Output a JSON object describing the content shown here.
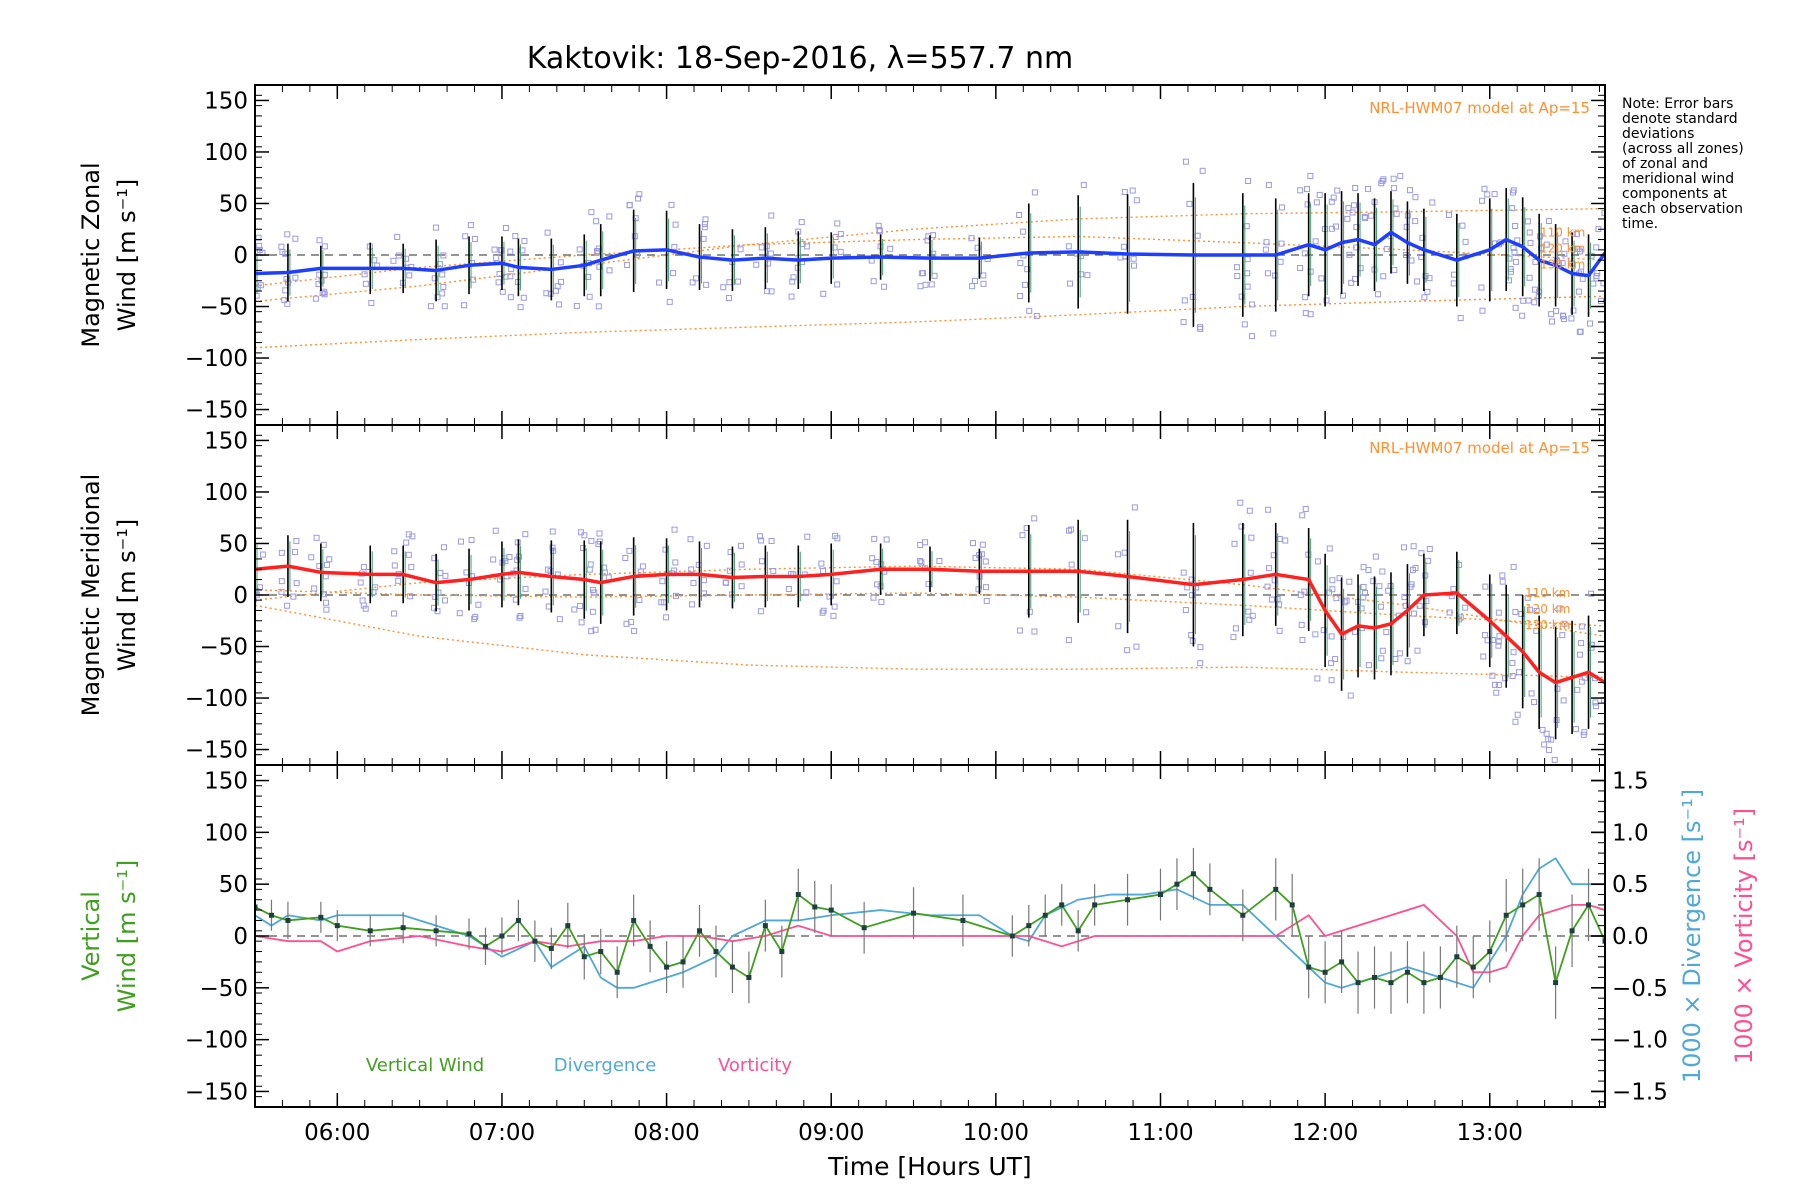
{
  "title": "Kaktovik: 18-Sep-2016, λ=557.7 nm",
  "note_lines": [
    "Note: Error bars",
    "denote standard",
    "deviations",
    "(across all zones)",
    "of zonal and",
    "meridional wind",
    "components at",
    "each observation",
    "time."
  ],
  "colors": {
    "zonal": "#1f3fff",
    "meridional": "#ff2020",
    "vertical": "#3f9f1f",
    "divergence": "#4fa8d8",
    "vorticity": "#ff4f8f",
    "model": "#ff8f30",
    "samples": "#9a9ae6",
    "errorbar": "#000000"
  },
  "chart_data": [
    {
      "type": "line",
      "ylabel_line1": "Magnetic Zonal",
      "ylabel_line2": "Wind [m s⁻¹]",
      "ylim": [
        -165,
        165
      ],
      "yticks": [
        150,
        100,
        50,
        0,
        -50,
        -100,
        -150
      ],
      "model_label": "NRL-HWM07 model at Ap=15",
      "model_heights": [
        "110 km",
        "120 km",
        "130 km"
      ],
      "model_curves": [
        {
          "x": [
            5.5,
            6.5,
            7.5,
            8.5,
            9.5,
            10.5,
            11.5,
            12.5,
            13.7
          ],
          "y": [
            -90,
            -82,
            -75,
            -70,
            -65,
            -58,
            -50,
            -45,
            -40
          ]
        },
        {
          "x": [
            5.5,
            6.5,
            7.5,
            8.5,
            9.5,
            10.5,
            11.5,
            12.5,
            13.7
          ],
          "y": [
            -30,
            -12,
            0,
            10,
            15,
            18,
            12,
            5,
            -5
          ]
        },
        {
          "x": [
            5.5,
            6.5,
            7.5,
            8.5,
            9.5,
            10.5,
            11.5,
            12.5,
            13.7
          ],
          "y": [
            -45,
            -30,
            -10,
            10,
            25,
            35,
            40,
            42,
            45
          ]
        }
      ],
      "series": [
        {
          "name": "Magnetic Zonal Wind",
          "x": [
            5.5,
            5.7,
            5.9,
            6.2,
            6.4,
            6.6,
            6.8,
            7.0,
            7.1,
            7.3,
            7.5,
            7.6,
            7.8,
            8.0,
            8.2,
            8.4,
            8.6,
            8.8,
            9.0,
            9.3,
            9.6,
            9.9,
            10.2,
            10.5,
            10.8,
            11.2,
            11.5,
            11.7,
            11.9,
            12.0,
            12.1,
            12.2,
            12.3,
            12.4,
            12.5,
            12.6,
            12.8,
            13.0,
            13.1,
            13.2,
            13.3,
            13.4,
            13.5,
            13.6,
            13.7
          ],
          "values": [
            -18,
            -17,
            -13,
            -13,
            -13,
            -15,
            -10,
            -8,
            -12,
            -14,
            -10,
            -5,
            4,
            5,
            -2,
            -5,
            -3,
            -5,
            -3,
            -2,
            -3,
            -3,
            2,
            3,
            1,
            0,
            0,
            0,
            10,
            5,
            12,
            15,
            10,
            22,
            12,
            5,
            -5,
            5,
            15,
            8,
            -5,
            -10,
            -18,
            -20,
            2
          ],
          "err": [
            25,
            28,
            22,
            25,
            24,
            30,
            28,
            26,
            28,
            30,
            30,
            35,
            40,
            38,
            32,
            30,
            30,
            28,
            25,
            22,
            22,
            20,
            48,
            55,
            58,
            70,
            60,
            55,
            50,
            55,
            50,
            45,
            45,
            40,
            40,
            40,
            45,
            50,
            50,
            48,
            45,
            40,
            40,
            40,
            35
          ]
        }
      ]
    },
    {
      "type": "line",
      "ylabel_line1": "Magnetic Meridional",
      "ylabel_line2": "Wind [m s⁻¹]",
      "ylim": [
        -165,
        165
      ],
      "yticks": [
        150,
        100,
        50,
        0,
        -50,
        -100,
        -150
      ],
      "model_label": "NRL-HWM07 model at Ap=15",
      "model_heights": [
        "110 km",
        "120 km",
        "130 km"
      ],
      "model_curves": [
        {
          "x": [
            5.5,
            6.5,
            7.5,
            8.5,
            9.5,
            10.5,
            11.5,
            12.5,
            13.7
          ],
          "y": [
            -10,
            -40,
            -58,
            -68,
            -72,
            -72,
            -70,
            -75,
            -80
          ]
        },
        {
          "x": [
            5.5,
            6.5,
            7.5,
            8.5,
            9.5,
            10.5,
            11.5,
            12.5,
            13.7
          ],
          "y": [
            5,
            0,
            -2,
            0,
            2,
            -2,
            -10,
            -20,
            -30
          ]
        },
        {
          "x": [
            5.5,
            6.5,
            7.5,
            8.5,
            9.5,
            10.5,
            11.5,
            12.5,
            13.7
          ],
          "y": [
            -5,
            12,
            20,
            25,
            28,
            25,
            10,
            -10,
            -40
          ]
        }
      ],
      "series": [
        {
          "name": "Magnetic Meridional Wind",
          "x": [
            5.5,
            5.7,
            5.9,
            6.2,
            6.4,
            6.6,
            6.8,
            7.0,
            7.1,
            7.3,
            7.5,
            7.6,
            7.8,
            8.0,
            8.2,
            8.4,
            8.6,
            8.8,
            9.0,
            9.3,
            9.6,
            9.9,
            10.2,
            10.5,
            10.8,
            11.2,
            11.5,
            11.7,
            11.9,
            12.0,
            12.1,
            12.2,
            12.3,
            12.4,
            12.5,
            12.6,
            12.8,
            13.0,
            13.1,
            13.2,
            13.3,
            13.4,
            13.5,
            13.6,
            13.7
          ],
          "values": [
            25,
            28,
            22,
            20,
            20,
            12,
            15,
            20,
            22,
            18,
            15,
            12,
            18,
            20,
            20,
            17,
            18,
            18,
            20,
            25,
            25,
            23,
            23,
            23,
            18,
            10,
            15,
            20,
            15,
            -15,
            -38,
            -30,
            -32,
            -28,
            -15,
            0,
            2,
            -25,
            -40,
            -55,
            -75,
            -85,
            -80,
            -75,
            -85
          ],
          "err": [
            30,
            30,
            28,
            28,
            28,
            28,
            30,
            32,
            32,
            35,
            38,
            40,
            38,
            35,
            32,
            30,
            30,
            30,
            30,
            25,
            22,
            22,
            45,
            50,
            55,
            60,
            55,
            50,
            50,
            55,
            55,
            50,
            50,
            50,
            45,
            40,
            40,
            45,
            50,
            55,
            55,
            55,
            55,
            55,
            40
          ]
        }
      ]
    },
    {
      "type": "line",
      "ylabel_line1": "Vertical",
      "ylabel_line2": "Wind [m s⁻¹]",
      "xlabel": "Time [Hours UT]",
      "ylim": [
        -165,
        165
      ],
      "yticks": [
        150,
        100,
        50,
        0,
        -50,
        -100,
        -150
      ],
      "xticks": [
        6,
        7,
        8,
        9,
        10,
        11,
        12,
        13
      ],
      "xticklabels": [
        "06:00",
        "07:00",
        "08:00",
        "09:00",
        "10:00",
        "11:00",
        "12:00",
        "13:00"
      ],
      "xlim": [
        5.5,
        13.7
      ],
      "right_axis": {
        "label_div": "1000 × Divergence [s⁻¹]",
        "label_vort": "1000 × Vorticity [s⁻¹]",
        "ylim": [
          -1.65,
          1.65
        ],
        "yticks": [
          1.5,
          1.0,
          0.5,
          0.0,
          -0.5,
          -1.0,
          -1.5
        ],
        "yticklabels": [
          "1.5",
          "1.0",
          "0.5",
          "0.0",
          "−0.5",
          "−1.0",
          "−1.5"
        ]
      },
      "legend": [
        "Vertical Wind",
        "Divergence",
        "Vorticity"
      ],
      "series": [
        {
          "name": "Vertical Wind",
          "axis": "left",
          "x": [
            5.5,
            5.6,
            5.7,
            5.9,
            6.0,
            6.2,
            6.4,
            6.6,
            6.8,
            6.9,
            7.0,
            7.1,
            7.2,
            7.3,
            7.4,
            7.5,
            7.6,
            7.7,
            7.8,
            7.9,
            8.0,
            8.1,
            8.2,
            8.3,
            8.4,
            8.5,
            8.6,
            8.7,
            8.8,
            8.9,
            9.0,
            9.2,
            9.5,
            9.8,
            10.1,
            10.2,
            10.3,
            10.4,
            10.5,
            10.6,
            10.8,
            11.0,
            11.1,
            11.2,
            11.3,
            11.5,
            11.7,
            11.8,
            11.9,
            12.0,
            12.1,
            12.2,
            12.3,
            12.4,
            12.5,
            12.6,
            12.7,
            12.8,
            12.9,
            13.0,
            13.1,
            13.2,
            13.3,
            13.4,
            13.5,
            13.6,
            13.7
          ],
          "values": [
            28,
            20,
            15,
            18,
            10,
            5,
            8,
            5,
            2,
            -10,
            0,
            15,
            -5,
            -12,
            10,
            -20,
            -15,
            -35,
            15,
            -10,
            -30,
            -25,
            5,
            -15,
            -30,
            -40,
            10,
            -15,
            40,
            28,
            25,
            8,
            22,
            15,
            0,
            10,
            20,
            30,
            5,
            30,
            35,
            40,
            50,
            60,
            45,
            20,
            45,
            30,
            -30,
            -35,
            -25,
            -45,
            -40,
            -45,
            -35,
            -45,
            -40,
            -20,
            -30,
            -15,
            20,
            30,
            40,
            -45,
            5,
            30,
            -5
          ],
          "err": [
            20,
            15,
            18,
            15,
            15,
            15,
            15,
            15,
            15,
            18,
            18,
            20,
            20,
            20,
            22,
            22,
            22,
            25,
            25,
            25,
            25,
            25,
            25,
            25,
            25,
            25,
            25,
            25,
            25,
            25,
            25,
            25,
            25,
            25,
            20,
            20,
            20,
            20,
            20,
            20,
            25,
            25,
            25,
            25,
            25,
            25,
            30,
            30,
            30,
            30,
            30,
            30,
            30,
            30,
            30,
            30,
            30,
            30,
            30,
            30,
            35,
            35,
            35,
            35,
            35,
            35,
            35
          ]
        },
        {
          "name": "Divergence",
          "axis": "right",
          "x": [
            5.5,
            5.6,
            5.7,
            5.9,
            6.0,
            6.2,
            6.4,
            6.6,
            6.8,
            7.0,
            7.2,
            7.3,
            7.5,
            7.6,
            7.7,
            7.8,
            7.9,
            8.0,
            8.1,
            8.3,
            8.4,
            8.6,
            8.8,
            9.0,
            9.3,
            9.6,
            9.9,
            10.1,
            10.2,
            10.3,
            10.5,
            10.7,
            10.9,
            11.1,
            11.3,
            11.5,
            11.7,
            11.9,
            12.0,
            12.1,
            12.3,
            12.5,
            12.7,
            12.9,
            13.1,
            13.2,
            13.3,
            13.4,
            13.5,
            13.6,
            13.7
          ],
          "values": [
            0.2,
            0.1,
            0.2,
            0.15,
            0.2,
            0.2,
            0.2,
            0.1,
            0.0,
            -0.2,
            -0.05,
            -0.3,
            -0.1,
            -0.4,
            -0.5,
            -0.5,
            -0.45,
            -0.4,
            -0.35,
            -0.2,
            0.0,
            0.15,
            0.15,
            0.2,
            0.25,
            0.2,
            0.2,
            0.0,
            -0.05,
            0.2,
            0.35,
            0.4,
            0.4,
            0.45,
            0.3,
            0.3,
            0.0,
            -0.3,
            -0.45,
            -0.5,
            -0.4,
            -0.3,
            -0.4,
            -0.5,
            0.0,
            0.4,
            0.65,
            0.75,
            0.5,
            0.5,
            0.5
          ]
        },
        {
          "name": "Vorticity",
          "axis": "right",
          "x": [
            5.5,
            5.7,
            5.9,
            6.0,
            6.2,
            6.5,
            6.8,
            7.0,
            7.2,
            7.4,
            7.6,
            7.8,
            8.0,
            8.2,
            8.4,
            8.6,
            8.8,
            9.0,
            9.3,
            9.6,
            9.9,
            10.2,
            10.4,
            10.6,
            10.8,
            11.0,
            11.2,
            11.5,
            11.7,
            11.9,
            12.0,
            12.2,
            12.4,
            12.6,
            12.8,
            12.9,
            13.0,
            13.1,
            13.2,
            13.3,
            13.5,
            13.6,
            13.7
          ],
          "values": [
            0.0,
            -0.05,
            -0.05,
            -0.15,
            -0.05,
            0.0,
            -0.1,
            -0.15,
            -0.05,
            -0.1,
            -0.05,
            -0.05,
            0.0,
            0.0,
            -0.05,
            0.0,
            0.1,
            0.0,
            0.0,
            0.0,
            0.0,
            0.0,
            -0.1,
            0.0,
            0.0,
            0.0,
            0.0,
            0.0,
            0.0,
            0.2,
            0.0,
            0.1,
            0.2,
            0.3,
            0.0,
            -0.35,
            -0.35,
            -0.3,
            0.0,
            0.2,
            0.3,
            0.3,
            0.25
          ]
        }
      ]
    }
  ]
}
